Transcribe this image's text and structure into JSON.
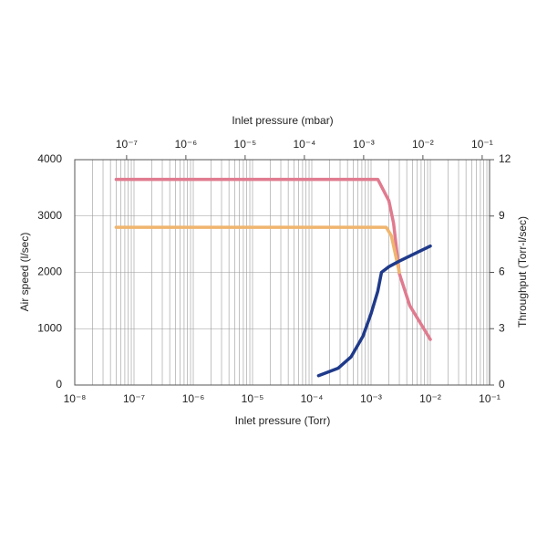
{
  "chart_data": {
    "type": "line",
    "xlabel": "Inlet pressure (Torr)",
    "x2label": "Inlet pressure (mbar)",
    "ylabel": "Air speed (l/sec)",
    "y2label": "Throughput (Torr-l/sec)",
    "xscale": "log",
    "grid": true,
    "xlim": [
      1e-08,
      0.1
    ],
    "xticks": [
      {
        "value": 1e-08,
        "label": "10⁻⁸"
      },
      {
        "value": 1e-07,
        "label": "10⁻⁷"
      },
      {
        "value": 1e-06,
        "label": "10⁻⁶"
      },
      {
        "value": 1e-05,
        "label": "10⁻⁵"
      },
      {
        "value": 0.0001,
        "label": "10⁻⁴"
      },
      {
        "value": 0.001,
        "label": "10⁻³"
      },
      {
        "value": 0.01,
        "label": "10⁻²"
      },
      {
        "value": 0.1,
        "label": "10⁻¹"
      }
    ],
    "x2lim": [
      1.333e-08,
      0.1333
    ],
    "x2ticks": [
      {
        "value": 1e-07,
        "label": "10⁻⁷"
      },
      {
        "value": 1e-06,
        "label": "10⁻⁶"
      },
      {
        "value": 1e-05,
        "label": "10⁻⁵"
      },
      {
        "value": 0.0001,
        "label": "10⁻⁴"
      },
      {
        "value": 0.001,
        "label": "10⁻³"
      },
      {
        "value": 0.01,
        "label": "10⁻²"
      },
      {
        "value": 0.1,
        "label": "10⁻¹"
      }
    ],
    "ylim": [
      0,
      4000
    ],
    "yticks": [
      0,
      1000,
      2000,
      3000,
      4000
    ],
    "y2lim": [
      0,
      12
    ],
    "y2ticks": [
      0,
      3,
      6,
      9,
      12
    ],
    "series": [
      {
        "color": "#e07b8f",
        "x": [
          5e-08,
          0.0013,
          0.002,
          0.0024,
          0.003,
          0.0045,
          0.01
        ],
        "values": [
          3650,
          3650,
          3270,
          2870,
          1980,
          1410,
          810
        ]
      },
      {
        "color": "#f0b56e",
        "x": [
          5e-08,
          0.0018,
          0.0022,
          0.0026,
          0.003
        ],
        "values": [
          2800,
          2800,
          2650,
          2300,
          2000
        ]
      },
      {
        "color": "#1f3a8a",
        "axis": "y2",
        "x": [
          0.00013,
          0.00028,
          0.00046,
          0.00073,
          0.001,
          0.0013,
          0.0015,
          0.002,
          0.003,
          0.01
        ],
        "values": [
          0.5,
          0.9,
          1.5,
          2.6,
          3.8,
          5.0,
          6.0,
          6.3,
          6.6,
          7.4
        ]
      }
    ]
  }
}
